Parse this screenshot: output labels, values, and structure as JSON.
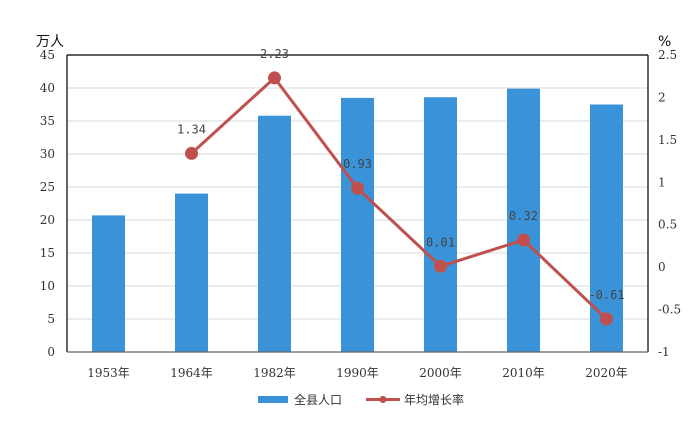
{
  "chart_data": {
    "type": "bar",
    "categories": [
      "1953年",
      "1964年",
      "1982年",
      "1990年",
      "2000年",
      "2010年",
      "2020年"
    ],
    "series": [
      {
        "name": "全县人口",
        "type": "bar",
        "axis": "left",
        "color": "#3a93d8",
        "values": [
          20.7,
          24.0,
          35.8,
          38.5,
          38.6,
          39.9,
          37.5
        ]
      },
      {
        "name": "年均增长率",
        "type": "line",
        "axis": "right",
        "color": "#c0504d",
        "values": [
          null,
          1.34,
          2.23,
          0.93,
          0.01,
          0.32,
          -0.61
        ]
      }
    ],
    "data_labels": [
      "1.34",
      "2.23",
      "0.93",
      "0.01",
      "0.32",
      "-0.61"
    ],
    "left_axis": {
      "unit": "万人",
      "min": 0,
      "max": 45,
      "ticks": [
        "0",
        "5",
        "10",
        "15",
        "20",
        "25",
        "30",
        "35",
        "40",
        "45"
      ]
    },
    "right_axis": {
      "unit": "%",
      "min": -1,
      "max": 2.5,
      "ticks": [
        "-1",
        "-0.5",
        "0",
        "0.5",
        "1",
        "1.5",
        "2",
        "2.5"
      ]
    },
    "grid": true,
    "legend_position": "bottom"
  }
}
